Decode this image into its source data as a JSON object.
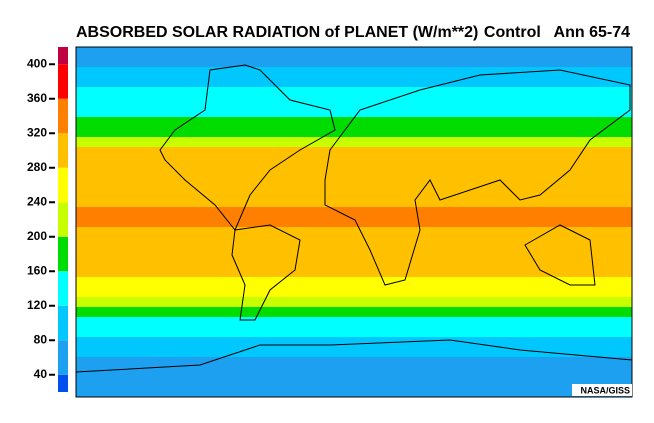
{
  "chart_data": {
    "type": "zonal-map",
    "title": "ABSORBED SOLAR RADIATION of PLANET (W/m**2)",
    "subtitle": "Control   Ann 65-74",
    "credit": "NASA/GISS",
    "colorbar": {
      "bounds": [
        20,
        40,
        80,
        120,
        160,
        200,
        240,
        280,
        320,
        360,
        400,
        420
      ],
      "colors": [
        "#0050f0",
        "#1ea0f0",
        "#00c8ff",
        "#00ffff",
        "#00dc00",
        "#c8ff00",
        "#ffff00",
        "#ffc000",
        "#ff8000",
        "#ff0000",
        "#c00040"
      ]
    },
    "ylim": [
      20,
      420
    ],
    "yticks": [
      40,
      80,
      120,
      160,
      200,
      240,
      280,
      320,
      360,
      400
    ],
    "zonal_rows": [
      60,
      60,
      100,
      100,
      140,
      140,
      140,
      180,
      180,
      220,
      300,
      300,
      300,
      300,
      300,
      300,
      340,
      340,
      300,
      300,
      300,
      300,
      300,
      260,
      260,
      220,
      180,
      140,
      140,
      100,
      100,
      60,
      60,
      60,
      60
    ]
  }
}
